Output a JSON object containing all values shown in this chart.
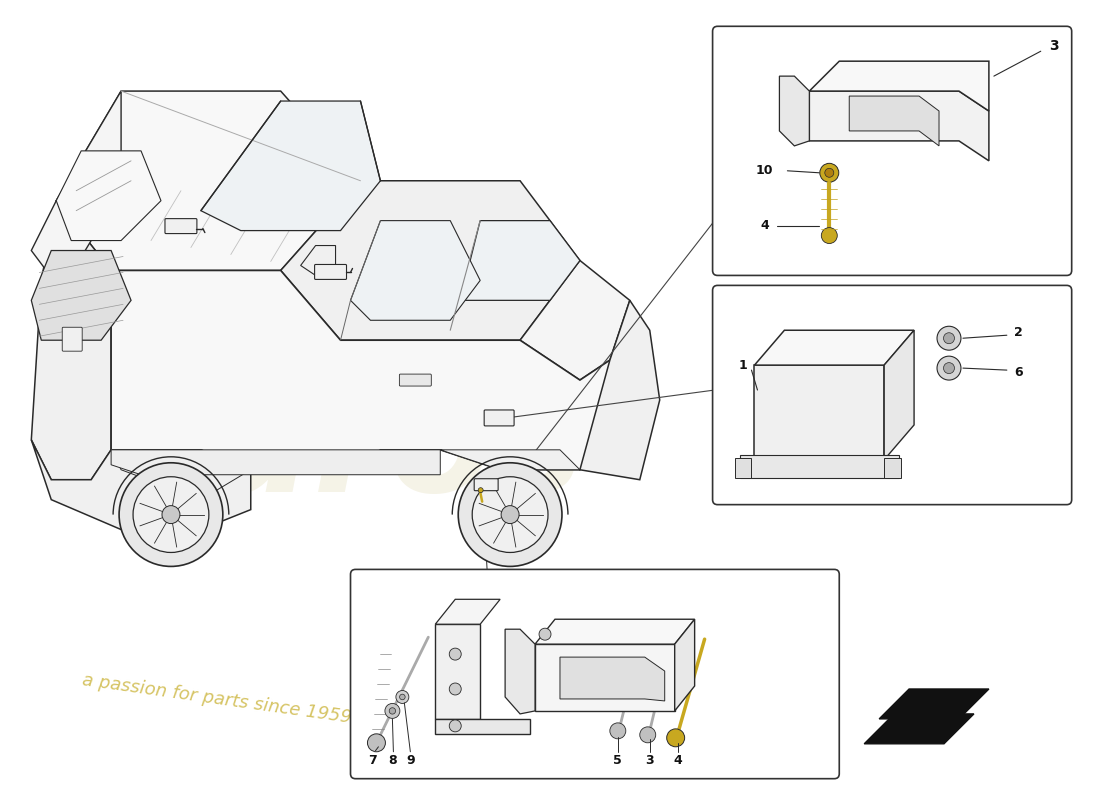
{
  "background_color": "#ffffff",
  "fig_width": 11.0,
  "fig_height": 8.0,
  "dpi": 100,
  "line_color": "#2a2a2a",
  "thin_line": 0.7,
  "med_line": 1.1,
  "thick_line": 1.5,
  "watermark_euros_color": "#d8d0a0",
  "watermark_passion_color": "#c8b030",
  "label_fontsize": 9,
  "bold_fontsize": 10,
  "car_face_color": "#ffffff",
  "car_edge_color": "#2a2a2a",
  "part_face_color": "#f2f2f2",
  "box_face_color": "#ffffff",
  "box_edge_color": "#333333",
  "bolt_color": "#c8a820",
  "arrow_color": "#1a1a1a"
}
